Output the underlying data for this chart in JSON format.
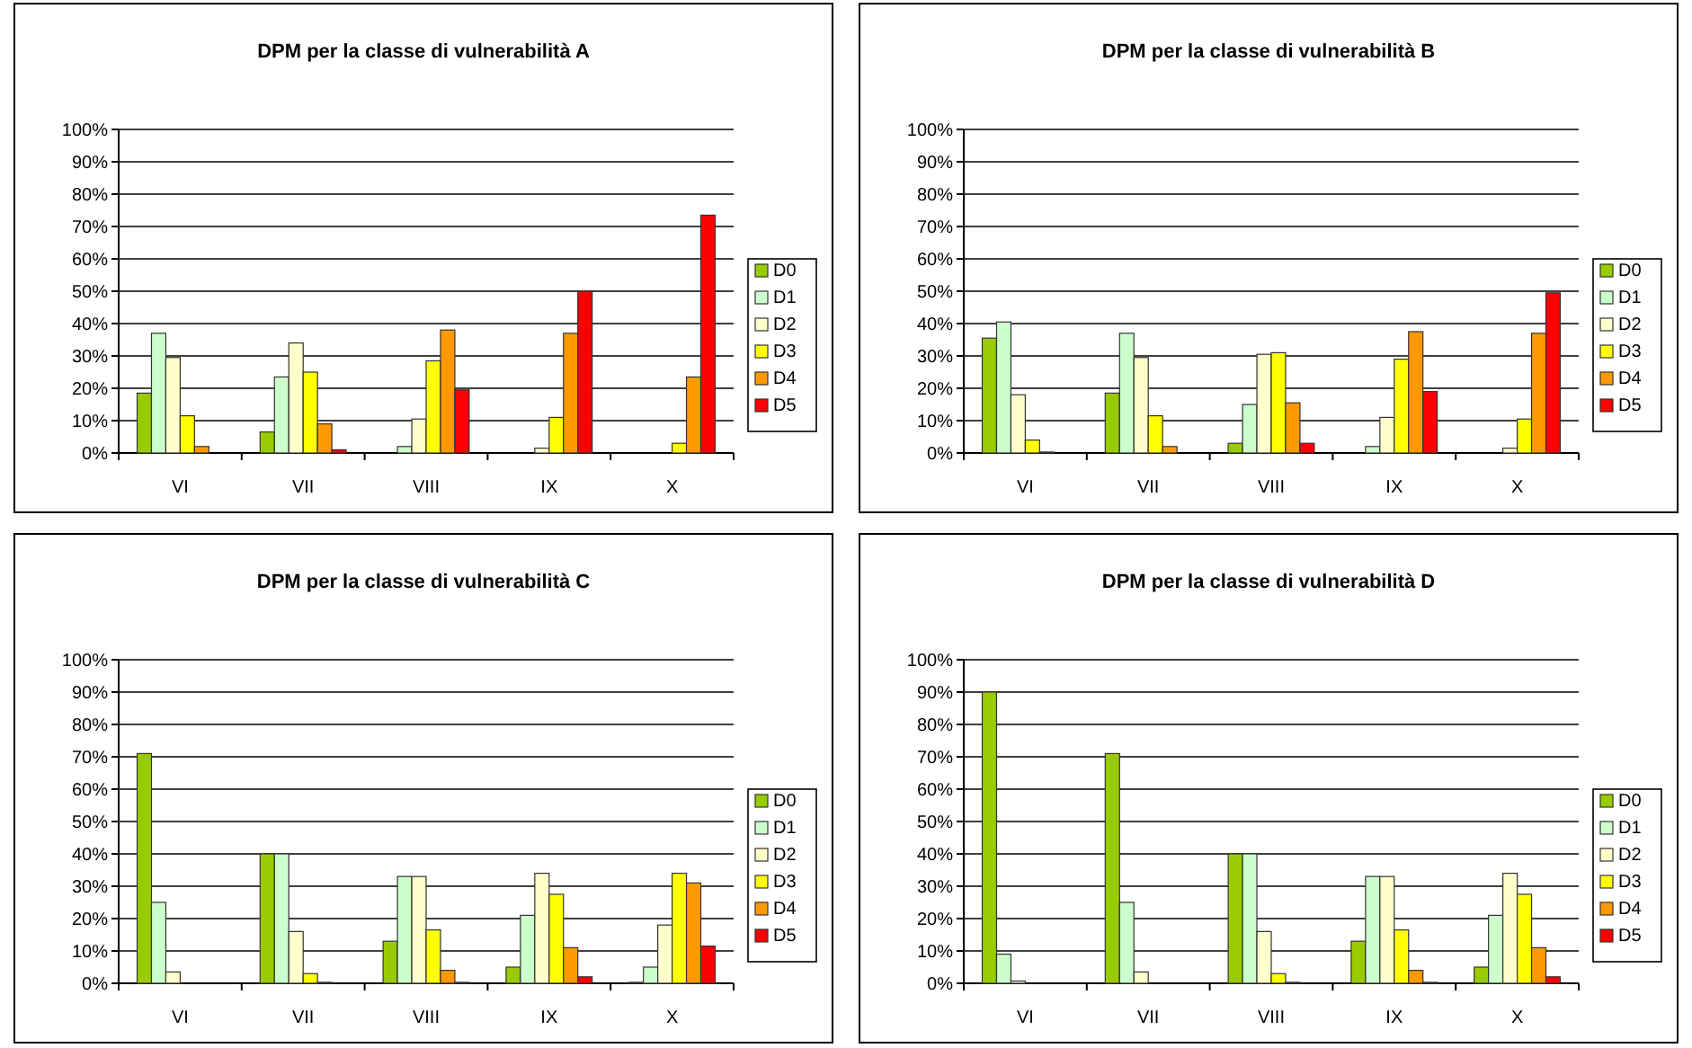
{
  "chart_data": [
    {
      "type": "bar",
      "title": "DPM per la classe di vulnerabilità A",
      "categories": [
        "VI",
        "VII",
        "VIII",
        "IX",
        "X"
      ],
      "ylim": [
        0,
        100
      ],
      "yticks": [
        {
          "value": 0,
          "label": "0%"
        },
        {
          "value": 10,
          "label": "10%"
        },
        {
          "value": 20,
          "label": "20%"
        },
        {
          "value": 30,
          "label": "30%"
        },
        {
          "value": 40,
          "label": "40%"
        },
        {
          "value": 50,
          "label": "50%"
        },
        {
          "value": 60,
          "label": "60%"
        },
        {
          "value": 70,
          "label": "70%"
        },
        {
          "value": 80,
          "label": "80%"
        },
        {
          "value": 90,
          "label": "90%"
        },
        {
          "value": 100,
          "label": "100%"
        }
      ],
      "grid": "y",
      "legend": "right",
      "series": [
        {
          "name": "D0",
          "color": "#99cc00",
          "values": [
            18.5,
            6.5,
            0,
            0,
            0
          ]
        },
        {
          "name": "D1",
          "color": "#ccffcc",
          "values": [
            37,
            23.5,
            2,
            0,
            0
          ]
        },
        {
          "name": "D2",
          "color": "#ffffcc",
          "values": [
            29.5,
            34,
            10.5,
            1.5,
            0
          ]
        },
        {
          "name": "D3",
          "color": "#ffff00",
          "values": [
            11.5,
            25,
            28.5,
            11,
            3
          ]
        },
        {
          "name": "D4",
          "color": "#ff9900",
          "values": [
            2,
            9,
            38,
            37,
            23.5
          ]
        },
        {
          "name": "D5",
          "color": "#ff0000",
          "values": [
            0,
            1,
            19.5,
            50,
            73.5
          ]
        }
      ]
    },
    {
      "type": "bar",
      "title": "DPM per la classe di vulnerabilità B",
      "categories": [
        "VI",
        "VII",
        "VIII",
        "IX",
        "X"
      ],
      "ylim": [
        0,
        100
      ],
      "yticks": [
        {
          "value": 0,
          "label": "0%"
        },
        {
          "value": 10,
          "label": "10%"
        },
        {
          "value": 20,
          "label": "20%"
        },
        {
          "value": 30,
          "label": "30%"
        },
        {
          "value": 40,
          "label": "40%"
        },
        {
          "value": 50,
          "label": "50%"
        },
        {
          "value": 60,
          "label": "60%"
        },
        {
          "value": 70,
          "label": "70%"
        },
        {
          "value": 80,
          "label": "80%"
        },
        {
          "value": 90,
          "label": "90%"
        },
        {
          "value": 100,
          "label": "100%"
        }
      ],
      "grid": "y",
      "legend": "right",
      "series": [
        {
          "name": "D0",
          "color": "#99cc00",
          "values": [
            35.5,
            18.5,
            3,
            0,
            0
          ]
        },
        {
          "name": "D1",
          "color": "#ccffcc",
          "values": [
            40.5,
            37,
            15,
            2,
            0
          ]
        },
        {
          "name": "D2",
          "color": "#ffffcc",
          "values": [
            18,
            29.5,
            30.5,
            11,
            1.5
          ]
        },
        {
          "name": "D3",
          "color": "#ffff00",
          "values": [
            4,
            11.5,
            31,
            29,
            10.5
          ]
        },
        {
          "name": "D4",
          "color": "#ff9900",
          "values": [
            0.3,
            2,
            15.5,
            37.5,
            37
          ]
        },
        {
          "name": "D5",
          "color": "#ff0000",
          "values": [
            0,
            0,
            3,
            19,
            49.5
          ]
        }
      ]
    },
    {
      "type": "bar",
      "title": "DPM per la classe di vulnerabilità C",
      "categories": [
        "VI",
        "VII",
        "VIII",
        "IX",
        "X"
      ],
      "ylim": [
        0,
        100
      ],
      "yticks": [
        {
          "value": 0,
          "label": "0%"
        },
        {
          "value": 10,
          "label": "10%"
        },
        {
          "value": 20,
          "label": "20%"
        },
        {
          "value": 30,
          "label": "30%"
        },
        {
          "value": 40,
          "label": "40%"
        },
        {
          "value": 50,
          "label": "50%"
        },
        {
          "value": 60,
          "label": "60%"
        },
        {
          "value": 70,
          "label": "70%"
        },
        {
          "value": 80,
          "label": "80%"
        },
        {
          "value": 90,
          "label": "90%"
        },
        {
          "value": 100,
          "label": "100%"
        }
      ],
      "grid": "y",
      "legend": "right",
      "series": [
        {
          "name": "D0",
          "color": "#99cc00",
          "values": [
            71,
            40,
            13,
            5,
            0.3
          ]
        },
        {
          "name": "D1",
          "color": "#ccffcc",
          "values": [
            25,
            40,
            33,
            21,
            5
          ]
        },
        {
          "name": "D2",
          "color": "#ffffcc",
          "values": [
            3.5,
            16,
            33,
            34,
            18
          ]
        },
        {
          "name": "D3",
          "color": "#ffff00",
          "values": [
            0,
            3,
            16.5,
            27.5,
            34
          ]
        },
        {
          "name": "D4",
          "color": "#ff9900",
          "values": [
            0,
            0.3,
            4,
            11,
            31
          ]
        },
        {
          "name": "D5",
          "color": "#ff0000",
          "values": [
            0,
            0,
            0.3,
            2,
            11.5
          ]
        }
      ]
    },
    {
      "type": "bar",
      "title": "DPM per la classe di vulnerabilità D",
      "categories": [
        "VI",
        "VII",
        "VIII",
        "IX",
        "X"
      ],
      "ylim": [
        0,
        100
      ],
      "yticks": [
        {
          "value": 0,
          "label": "0%"
        },
        {
          "value": 10,
          "label": "10%"
        },
        {
          "value": 20,
          "label": "20%"
        },
        {
          "value": 30,
          "label": "30%"
        },
        {
          "value": 40,
          "label": "40%"
        },
        {
          "value": 50,
          "label": "50%"
        },
        {
          "value": 60,
          "label": "60%"
        },
        {
          "value": 70,
          "label": "70%"
        },
        {
          "value": 80,
          "label": "80%"
        },
        {
          "value": 90,
          "label": "90%"
        },
        {
          "value": 100,
          "label": "100%"
        }
      ],
      "grid": "y",
      "legend": "right",
      "series": [
        {
          "name": "D0",
          "color": "#99cc00",
          "values": [
            90,
            71,
            40,
            13,
            5
          ]
        },
        {
          "name": "D1",
          "color": "#ccffcc",
          "values": [
            9,
            25,
            40,
            33,
            21
          ]
        },
        {
          "name": "D2",
          "color": "#ffffcc",
          "values": [
            0.7,
            3.5,
            16,
            33,
            34
          ]
        },
        {
          "name": "D3",
          "color": "#ffff00",
          "values": [
            0,
            0,
            3,
            16.5,
            27.5
          ]
        },
        {
          "name": "D4",
          "color": "#ff9900",
          "values": [
            0,
            0,
            0.3,
            4,
            11
          ]
        },
        {
          "name": "D5",
          "color": "#ff0000",
          "values": [
            0,
            0,
            0,
            0.3,
            2
          ]
        }
      ]
    }
  ]
}
